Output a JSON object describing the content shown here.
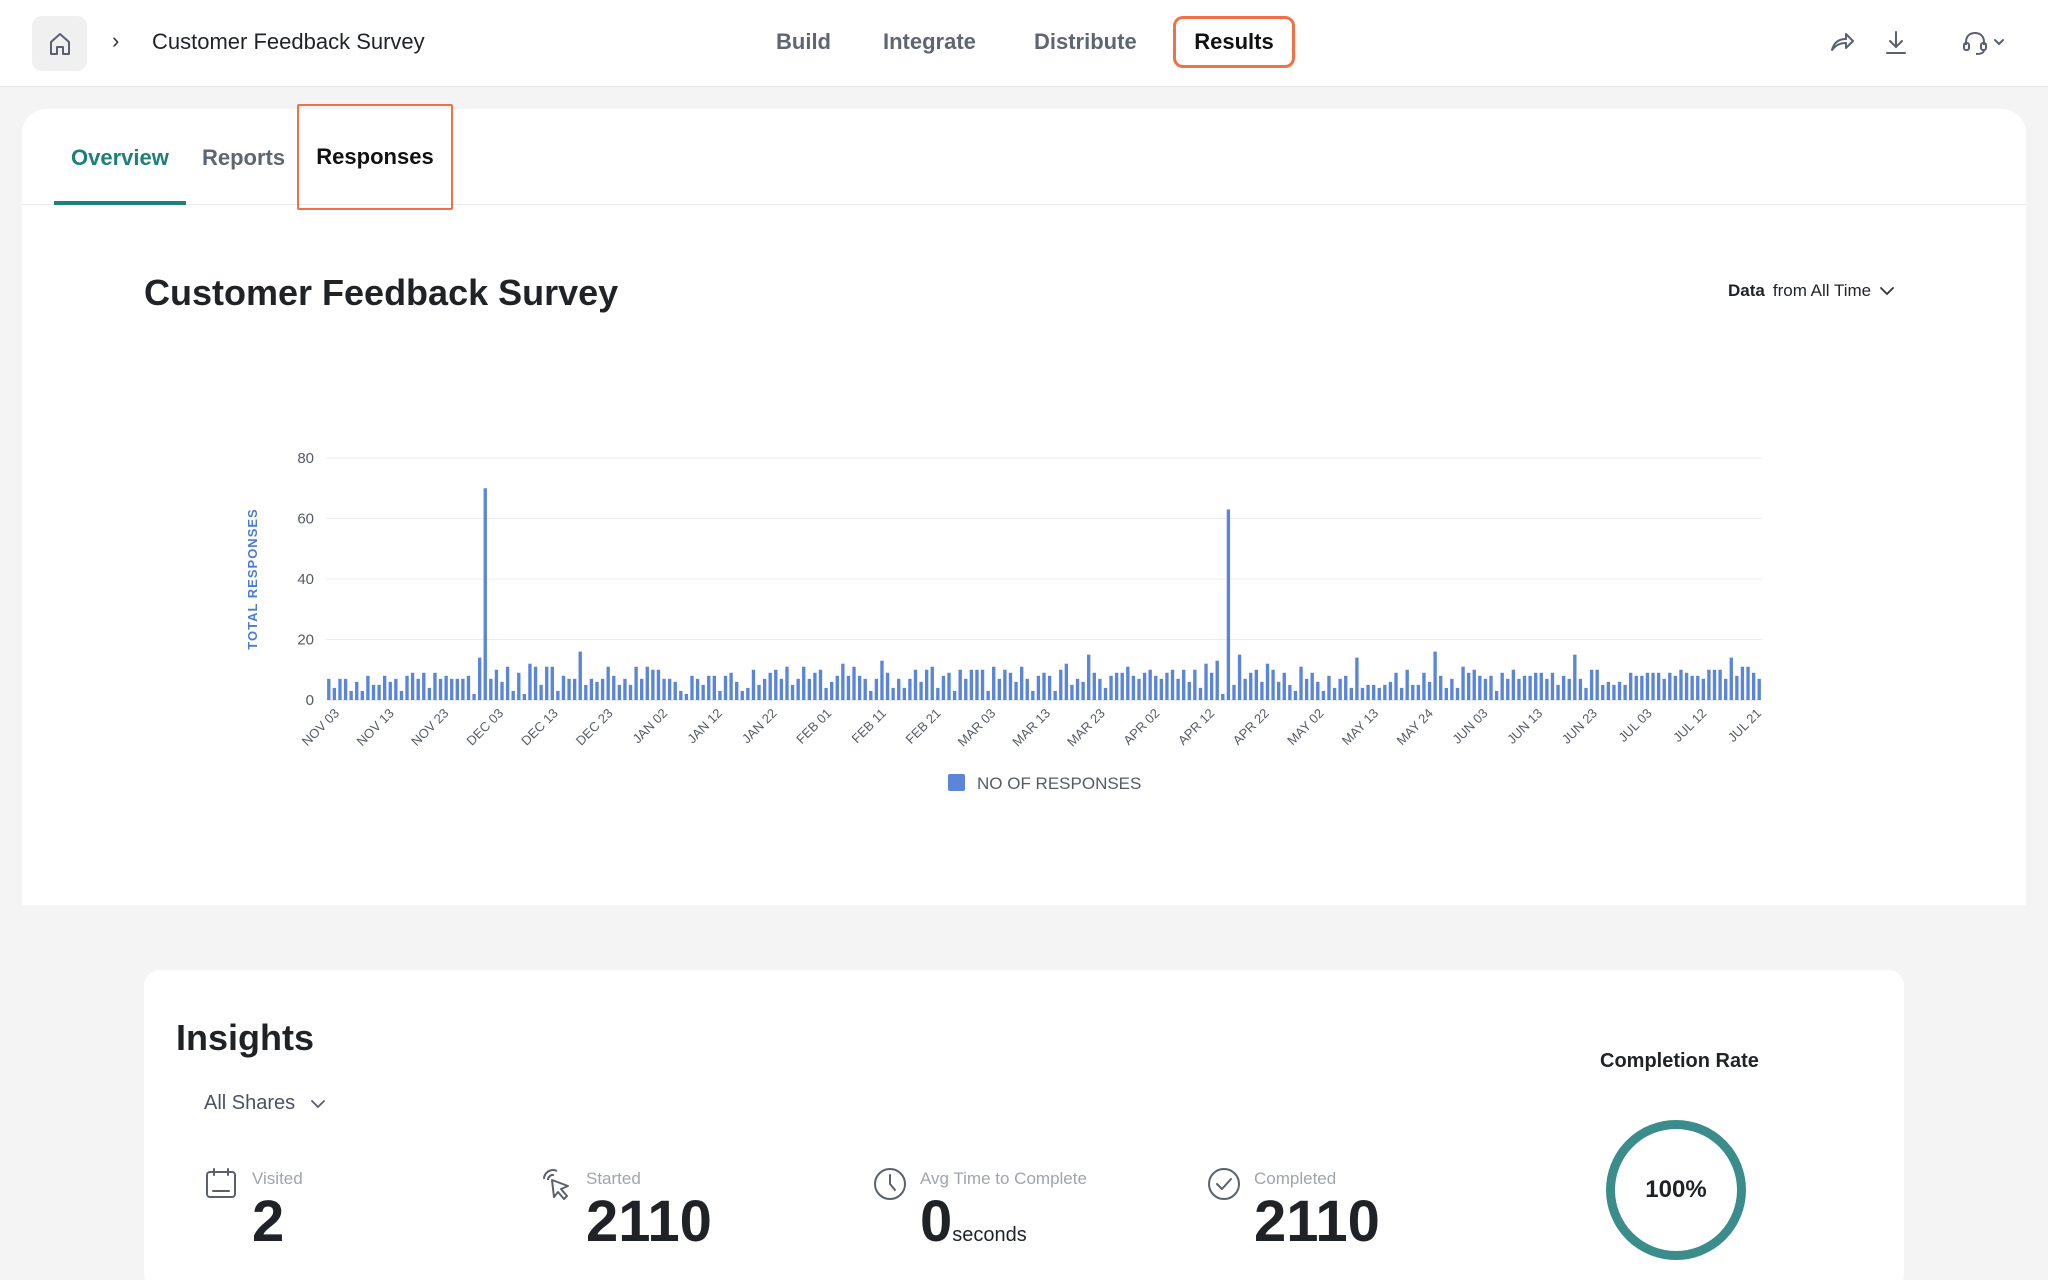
{
  "topbar": {
    "title": "Customer Feedback Survey",
    "breadcrumb_separator": "›",
    "nav": [
      "Build",
      "Integrate",
      "Distribute",
      "Results"
    ],
    "active_nav": "Results",
    "icons": [
      "home-icon",
      "share-icon",
      "download-icon",
      "headset-icon",
      "chevron-down-icon"
    ]
  },
  "tabs": {
    "overview": "Overview",
    "reports": "Reports",
    "responses": "Responses",
    "active": "Overview"
  },
  "chart_section": {
    "title": "Customer Feedback Survey",
    "range_label": "Data",
    "range_value": "from All Time"
  },
  "chart_data": {
    "type": "bar",
    "ylabel": "TOTAL RESPONSES",
    "ylim": [
      0,
      80
    ],
    "yticks": [
      0,
      20,
      40,
      60,
      80
    ],
    "xticks": [
      "NOV 03",
      "NOV 13",
      "NOV 23",
      "DEC 03",
      "DEC 13",
      "DEC 23",
      "JAN 02",
      "JAN 12",
      "JAN 22",
      "FEB 01",
      "FEB 11",
      "FEB 21",
      "MAR 03",
      "MAR 13",
      "MAR 23",
      "APR 02",
      "APR 12",
      "APR 22",
      "MAY 02",
      "MAY 13",
      "MAY 24",
      "JUN 03",
      "JUN 13",
      "JUN 23",
      "JUL 03",
      "JUL 12",
      "JUL 21"
    ],
    "grid": true,
    "legend_position": "bottom",
    "series": [
      {
        "name": "NO OF RESPONSES",
        "color": "#5b85d9",
        "values": [
          7,
          4,
          7,
          7,
          3,
          6,
          3,
          8,
          5,
          5,
          8,
          6,
          7,
          3,
          8,
          9,
          7,
          9,
          4,
          9,
          7,
          8,
          7,
          7,
          7,
          8,
          2,
          14,
          70,
          7,
          10,
          6,
          11,
          3,
          9,
          2,
          12,
          11,
          5,
          11,
          11,
          3,
          8,
          7,
          7,
          16,
          5,
          7,
          6,
          7,
          11,
          8,
          5,
          7,
          5,
          11,
          7,
          11,
          10,
          10,
          7,
          7,
          6,
          3,
          2,
          8,
          7,
          5,
          8,
          8,
          3,
          8,
          9,
          6,
          3,
          4,
          10,
          5,
          7,
          9,
          10,
          7,
          11,
          5,
          7,
          11,
          7,
          9,
          10,
          4,
          6,
          8,
          12,
          8,
          11,
          8,
          7,
          3,
          7,
          13,
          9,
          4,
          7,
          4,
          7,
          10,
          6,
          10,
          11,
          4,
          8,
          9,
          3,
          10,
          7,
          10,
          10,
          10,
          3,
          11,
          7,
          10,
          9,
          6,
          11,
          7,
          3,
          8,
          9,
          8,
          3,
          10,
          12,
          5,
          7,
          6,
          15,
          9,
          7,
          4,
          8,
          9,
          9,
          11,
          8,
          7,
          9,
          10,
          8,
          7,
          9,
          10,
          7,
          10,
          6,
          10,
          4,
          12,
          9,
          13,
          2,
          63,
          5,
          15,
          7,
          9,
          10,
          6,
          12,
          10,
          6,
          9,
          5,
          3,
          11,
          7,
          9,
          6,
          3,
          8,
          4,
          7,
          8,
          4,
          14,
          4,
          5,
          5,
          4,
          5,
          6,
          9,
          4,
          10,
          5,
          5,
          9,
          6,
          16,
          8,
          4,
          7,
          4,
          11,
          9,
          10,
          8,
          7,
          8,
          3,
          9,
          7,
          10,
          7,
          8,
          8,
          9,
          9,
          7,
          9,
          5,
          8,
          7,
          15,
          7,
          4,
          10,
          10,
          5,
          6,
          5,
          6,
          5,
          9,
          8,
          8,
          9,
          9,
          9,
          7,
          9,
          8,
          10,
          9,
          8,
          8,
          7,
          10,
          10,
          10,
          7,
          14,
          8,
          11,
          11,
          9,
          7
        ]
      }
    ]
  },
  "insights": {
    "title": "Insights",
    "filter": "All Shares",
    "metrics": {
      "visited_label": "Visited",
      "visited_value": "2",
      "started_label": "Started",
      "started_value": "2110",
      "avg_label": "Avg Time to Complete",
      "avg_value": "0",
      "avg_unit": "seconds",
      "completed_label": "Completed",
      "completed_value": "2110"
    },
    "completion_title": "Completion Rate",
    "completion_value": "100%",
    "completion_fraction": 1.0
  }
}
